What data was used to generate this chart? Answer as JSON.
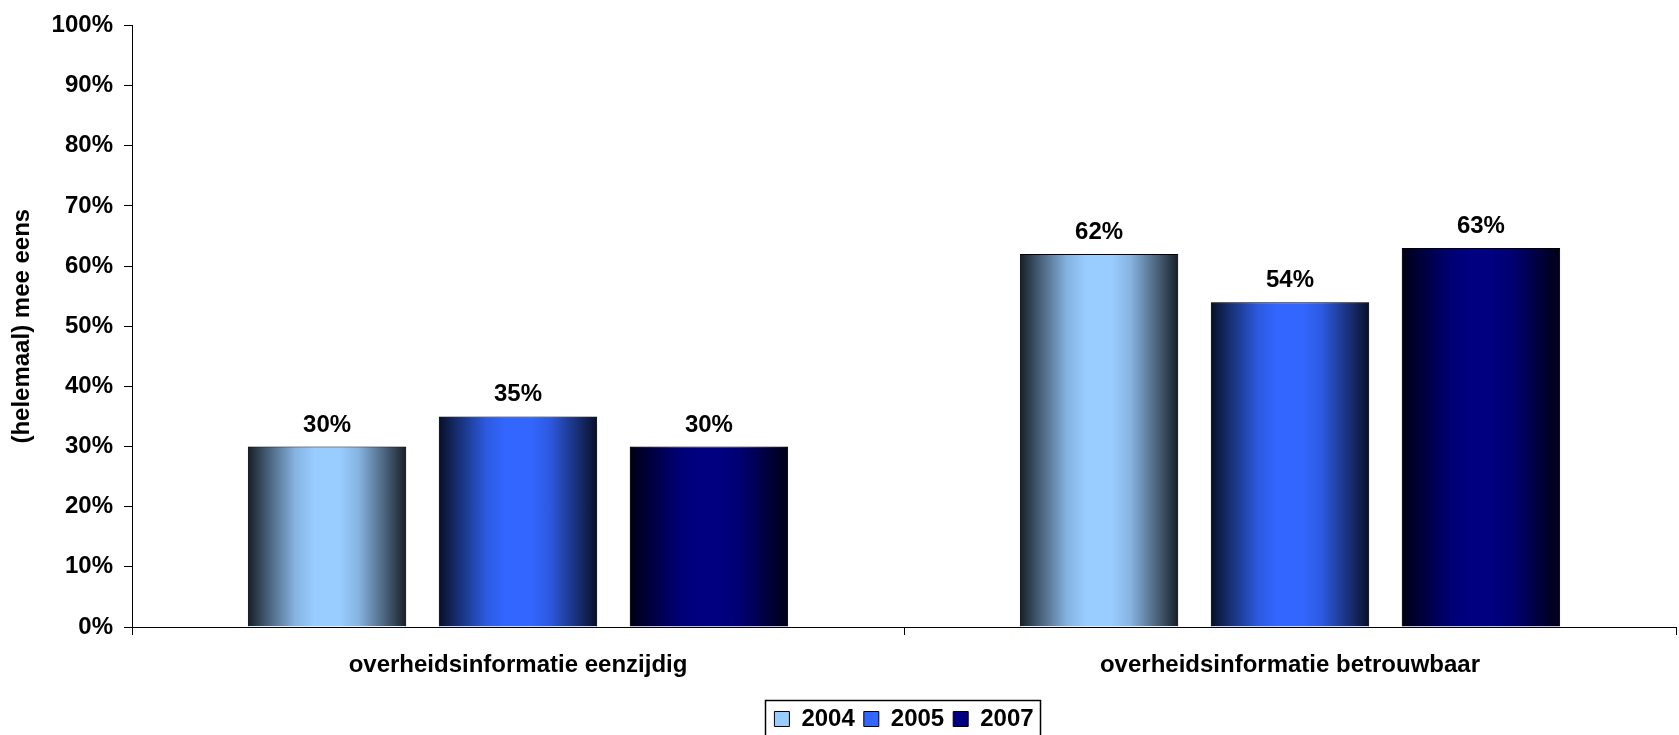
{
  "chart_data": {
    "type": "bar",
    "ylabel": "(helemaal) mee eens",
    "categories": [
      "overheidsinformatie eenzijdig",
      "overheidsinformatie betrouwbaar"
    ],
    "series": [
      {
        "name": "2004",
        "color": "#99ccff",
        "values": [
          30,
          62
        ],
        "value_labels": [
          "30%",
          "62%"
        ]
      },
      {
        "name": "2005",
        "color": "#3366ff",
        "values": [
          35,
          54
        ],
        "value_labels": [
          "35%",
          "54%"
        ]
      },
      {
        "name": "2007",
        "color": "#000080",
        "values": [
          30,
          63
        ],
        "value_labels": [
          "30%",
          "63%"
        ]
      }
    ],
    "ylim": [
      0,
      100
    ],
    "yticks": [
      {
        "value": 0,
        "label": "0%"
      },
      {
        "value": 10,
        "label": "10%"
      },
      {
        "value": 20,
        "label": "20%"
      },
      {
        "value": 30,
        "label": "30%"
      },
      {
        "value": 40,
        "label": "40%"
      },
      {
        "value": 50,
        "label": "50%"
      },
      {
        "value": 60,
        "label": "60%"
      },
      {
        "value": 70,
        "label": "70%"
      },
      {
        "value": 80,
        "label": "80%"
      },
      {
        "value": 90,
        "label": "90%"
      },
      {
        "value": 100,
        "label": "100%"
      }
    ],
    "legend": "bottom"
  }
}
